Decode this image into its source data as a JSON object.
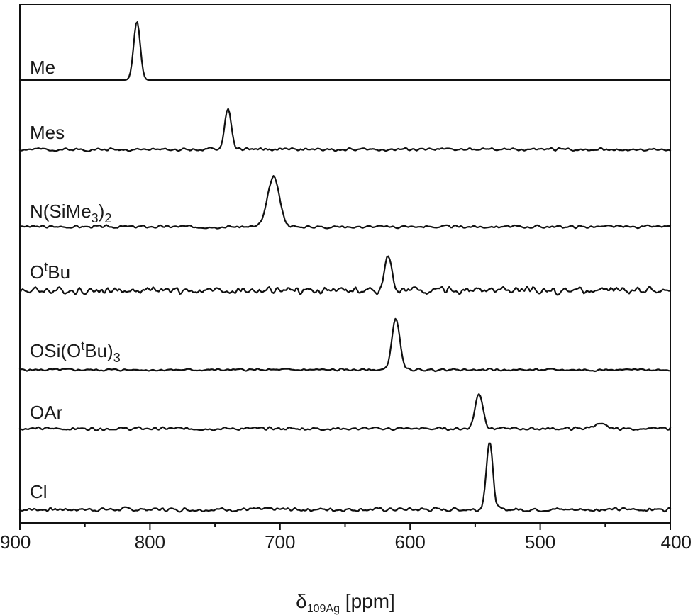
{
  "chart_data": {
    "type": "line",
    "xlabel": "δ",
    "xlabel_sub": "109Ag",
    "xlabel_unit": " [ppm]",
    "xlim": [
      900,
      400
    ],
    "x_reversed": true,
    "xticks": [
      900,
      800,
      700,
      600,
      500,
      400
    ],
    "xticks_minor": [
      850,
      750,
      650,
      550,
      450
    ],
    "grid": false,
    "legend": "none",
    "series": [
      {
        "name": "Me",
        "label_parts": [
          {
            "t": "Me"
          }
        ],
        "peak": 810,
        "width": 2.5,
        "height": 1.0,
        "noise": 0.0,
        "seed": 1
      },
      {
        "name": "Mes",
        "label_parts": [
          {
            "t": "Mes"
          }
        ],
        "peak": 740,
        "width": 2.5,
        "height": 1.0,
        "noise": 0.05,
        "seed": 2
      },
      {
        "name": "N(SiMe3)2",
        "label_parts": [
          {
            "t": "N(SiMe"
          },
          {
            "t": "3",
            "sub": true
          },
          {
            "t": ")"
          },
          {
            "t": "2",
            "sub": true
          }
        ],
        "peak": 705,
        "width": 4.5,
        "height": 1.0,
        "noise": 0.04,
        "seed": 3
      },
      {
        "name": "OtBu",
        "label_parts": [
          {
            "t": "O"
          },
          {
            "t": "t",
            "sup": true
          },
          {
            "t": "Bu"
          }
        ],
        "peak": 617,
        "width": 2.5,
        "height": 1.0,
        "noise": 0.14,
        "seed": 4
      },
      {
        "name": "OSi(OtBu)3",
        "label_parts": [
          {
            "t": "OSi(O"
          },
          {
            "t": "t",
            "sup": true
          },
          {
            "t": "Bu)"
          },
          {
            "t": "3",
            "sub": true
          }
        ],
        "peak": 611,
        "width": 3.0,
        "height": 1.0,
        "noise": 0.03,
        "seed": 5
      },
      {
        "name": "OAr",
        "label_parts": [
          {
            "t": "OAr"
          }
        ],
        "peak": 547,
        "width": 3.0,
        "height": 1.0,
        "noise": 0.06,
        "seed": 6,
        "extra_peaks": [
          {
            "x": 455,
            "w": 5,
            "h": 0.12
          }
        ]
      },
      {
        "name": "Cl",
        "label_parts": [
          {
            "t": "Cl"
          }
        ],
        "peak": 539,
        "width": 2.5,
        "height": 1.0,
        "noise": 0.04,
        "seed": 7
      }
    ]
  }
}
